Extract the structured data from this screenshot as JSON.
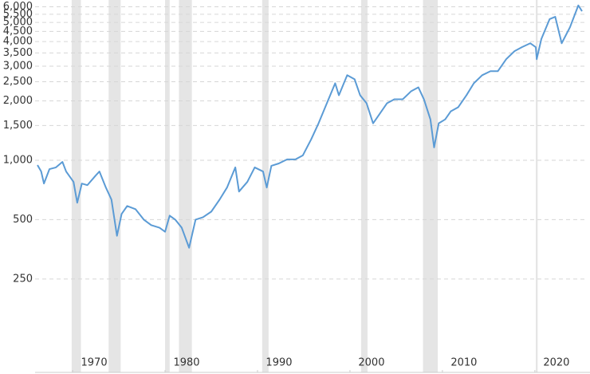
{
  "chart_data": {
    "type": "line",
    "log_scale": true,
    "grid": true,
    "color": "#5b9bd5",
    "recession_color": "#e5e5e5",
    "xlim": [
      1966.2,
      2025.1
    ],
    "xticks": [
      1970,
      1980,
      1990,
      2000,
      2010,
      2020
    ],
    "ylim": [
      84,
      6200
    ],
    "yticks": [
      250,
      500,
      {
        "value": 1000,
        "label": "1,000"
      },
      {
        "value": 1500,
        "label": "1,500"
      },
      {
        "value": 2000,
        "label": "2,000"
      },
      {
        "value": 2500,
        "label": "2,500"
      },
      {
        "value": 3000,
        "label": "3,000"
      },
      {
        "value": 3500,
        "label": "3,500"
      },
      {
        "value": 4000,
        "label": "4,000"
      },
      {
        "value": 4500,
        "label": "4,500"
      },
      {
        "value": 5000,
        "label": "5,000"
      },
      {
        "value": 5500,
        "label": "5,500"
      },
      {
        "value": 6000,
        "label": "6,000"
      }
    ],
    "recessions": [
      [
        1969.9,
        1970.9
      ],
      [
        1973.9,
        1975.2
      ],
      [
        1980.0,
        1980.5
      ],
      [
        1981.5,
        1982.9
      ],
      [
        1990.5,
        1991.2
      ],
      [
        2001.2,
        2001.9
      ],
      [
        2007.9,
        2009.5
      ],
      [
        2020.1,
        2020.3
      ]
    ],
    "x": [
      1966.2,
      1966.6,
      1966.9,
      1967.5,
      1968.2,
      1968.9,
      1969.3,
      1970.1,
      1970.5,
      1971.0,
      1971.6,
      1972.5,
      1972.9,
      1973.6,
      1974.2,
      1974.8,
      1975.3,
      1975.9,
      1976.8,
      1977.7,
      1978.5,
      1979.4,
      1980.0,
      1980.5,
      1981.1,
      1981.8,
      1982.6,
      1983.3,
      1984.1,
      1985.0,
      1985.9,
      1986.7,
      1987.6,
      1988.0,
      1988.9,
      1989.7,
      1990.6,
      1991.0,
      1991.5,
      1992.3,
      1993.2,
      1994.1,
      1994.9,
      1995.8,
      1996.6,
      1997.5,
      1998.4,
      1998.8,
      1999.7,
      2000.5,
      2001.1,
      2001.8,
      2002.5,
      2003.1,
      2004.0,
      2004.8,
      2005.7,
      2006.6,
      2007.4,
      2008.0,
      2008.7,
      2009.1,
      2009.6,
      2010.3,
      2010.9,
      2011.7,
      2012.6,
      2013.4,
      2014.3,
      2015.2,
      2016.0,
      2016.9,
      2017.8,
      2018.6,
      2019.5,
      2020.1,
      2020.2,
      2020.7,
      2021.6,
      2022.2,
      2022.9,
      2023.8,
      2024.7,
      2025.1
    ],
    "values": [
      945,
      877,
      762,
      902,
      920,
      981,
      877,
      777,
      609,
      762,
      748,
      837,
      877,
      727,
      632,
      414,
      534,
      586,
      565,
      500,
      469,
      455,
      434,
      524,
      500,
      455,
      360,
      500,
      514,
      549,
      632,
      727,
      920,
      694,
      777,
      920,
      877,
      727,
      937,
      963,
      1010,
      1010,
      1058,
      1276,
      1539,
      1945,
      2458,
      2136,
      2700,
      2575,
      2136,
      1945,
      1539,
      1689,
      1945,
      2037,
      2037,
      2236,
      2343,
      2037,
      1612,
      1162,
      1539,
      1612,
      1770,
      1856,
      2136,
      2458,
      2700,
      2830,
      2830,
      3255,
      3575,
      3745,
      3920,
      3745,
      3255,
      4120,
      5200,
      5340,
      3920,
      4730,
      6100,
      5700
    ]
  }
}
